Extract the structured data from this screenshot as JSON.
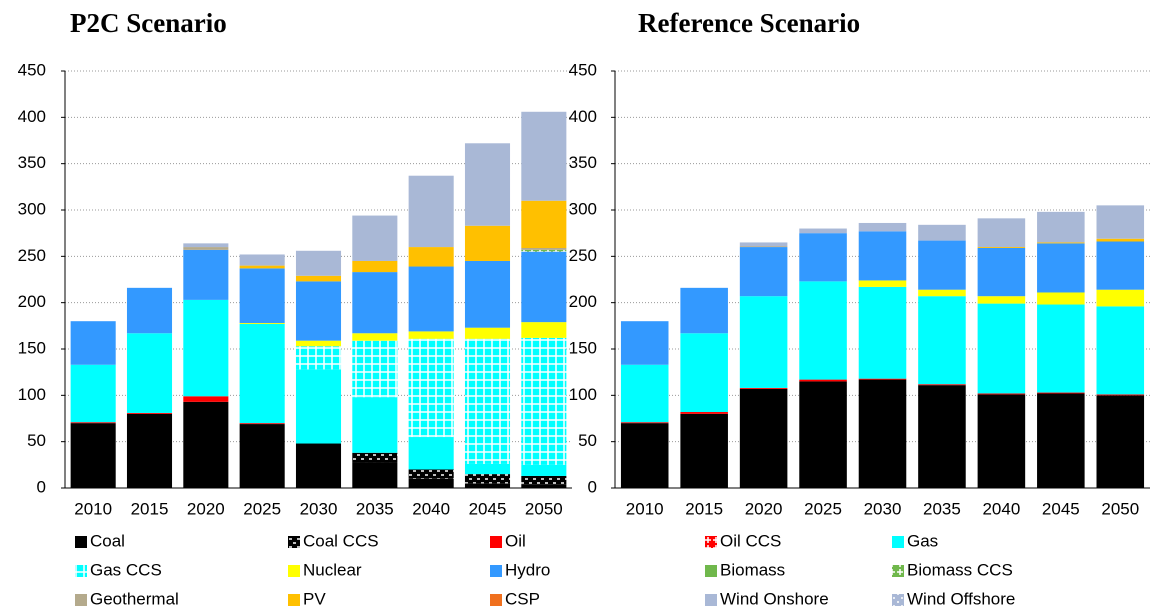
{
  "chart_data": [
    {
      "type": "stacked_bar",
      "title": "P2C Scenario",
      "categories": [
        "2010",
        "2015",
        "2020",
        "2025",
        "2030",
        "2035",
        "2040",
        "2045",
        "2050"
      ],
      "ylim": [
        0,
        450
      ],
      "yticks": [
        0,
        50,
        100,
        150,
        200,
        250,
        300,
        350,
        400,
        450
      ],
      "grid": true,
      "series": [
        {
          "name": "Coal",
          "color": "#000000",
          "values": [
            70,
            80,
            93,
            69,
            48,
            28,
            10,
            5,
            4
          ]
        },
        {
          "name": "Coal CCS",
          "color": "#000000",
          "pattern": "dash",
          "values": [
            0,
            0,
            0,
            0,
            0,
            10,
            10,
            10,
            9
          ]
        },
        {
          "name": "Oil",
          "color": "#ff0000",
          "values": [
            1,
            1,
            6,
            1,
            0,
            0,
            0,
            0,
            0
          ]
        },
        {
          "name": "Oil CCS",
          "color": "#ff0000",
          "pattern": "cross",
          "values": [
            0,
            0,
            0,
            0,
            0,
            0,
            0,
            0,
            0
          ]
        },
        {
          "name": "Gas",
          "color": "#00ffff",
          "values": [
            62,
            86,
            104,
            107,
            80,
            60,
            35,
            11,
            12
          ]
        },
        {
          "name": "Gas CCS",
          "color": "#00ffff",
          "pattern": "grid",
          "values": [
            0,
            0,
            0,
            0,
            25,
            61,
            106,
            135,
            137
          ]
        },
        {
          "name": "Nuclear",
          "color": "#ffff00",
          "values": [
            0,
            0,
            0,
            1,
            6,
            8,
            8,
            12,
            17
          ]
        },
        {
          "name": "Hydro",
          "color": "#3399ff",
          "values": [
            47,
            49,
            54,
            59,
            64,
            66,
            70,
            72,
            76
          ]
        },
        {
          "name": "Biomass",
          "color": "#70b84c",
          "values": [
            0,
            0,
            0,
            0,
            0,
            0,
            0,
            0,
            0
          ]
        },
        {
          "name": "Biomass CCS",
          "color": "#70b84c",
          "pattern": "cross",
          "values": [
            0,
            0,
            0,
            0,
            0,
            0,
            0,
            0,
            2
          ]
        },
        {
          "name": "Geothermal",
          "color": "#b4aa8c",
          "values": [
            0,
            0,
            3,
            0,
            0,
            0,
            0,
            0,
            2
          ]
        },
        {
          "name": "PV",
          "color": "#ffc000",
          "values": [
            0,
            0,
            0,
            3,
            6,
            12,
            21,
            38,
            51
          ]
        },
        {
          "name": "CSP",
          "color": "#f0701e",
          "values": [
            0,
            0,
            0,
            0,
            0,
            0,
            0,
            0,
            0
          ]
        },
        {
          "name": "Wind Onshore",
          "color": "#a9b8d6",
          "values": [
            0,
            0,
            4,
            12,
            27,
            49,
            77,
            89,
            96
          ]
        },
        {
          "name": "Wind Offshore",
          "color": "#a9b8d6",
          "pattern": "dots",
          "values": [
            0,
            0,
            0,
            0,
            0,
            0,
            0,
            0,
            0
          ]
        }
      ]
    },
    {
      "type": "stacked_bar",
      "title": "Reference Scenario",
      "categories": [
        "2010",
        "2015",
        "2020",
        "2025",
        "2030",
        "2035",
        "2040",
        "2045",
        "2050"
      ],
      "ylim": [
        0,
        450
      ],
      "yticks": [
        0,
        50,
        100,
        150,
        200,
        250,
        300,
        350,
        400,
        450
      ],
      "grid": true,
      "series": [
        {
          "name": "Coal",
          "color": "#000000",
          "values": [
            70,
            80,
            107,
            115,
            117,
            111,
            101,
            102,
            100
          ]
        },
        {
          "name": "Coal CCS",
          "color": "#000000",
          "pattern": "dash",
          "values": [
            0,
            0,
            0,
            0,
            0,
            0,
            0,
            0,
            0
          ]
        },
        {
          "name": "Oil",
          "color": "#ff0000",
          "values": [
            1,
            2,
            1,
            2,
            1,
            1,
            1,
            1,
            1
          ]
        },
        {
          "name": "Oil CCS",
          "color": "#ff0000",
          "pattern": "cross",
          "values": [
            0,
            0,
            0,
            0,
            0,
            0,
            0,
            0,
            0
          ]
        },
        {
          "name": "Gas",
          "color": "#00ffff",
          "values": [
            62,
            85,
            99,
            106,
            99,
            95,
            97,
            95,
            95
          ]
        },
        {
          "name": "Gas CCS",
          "color": "#00ffff",
          "pattern": "grid",
          "values": [
            0,
            0,
            0,
            0,
            0,
            0,
            0,
            0,
            0
          ]
        },
        {
          "name": "Nuclear",
          "color": "#ffff00",
          "values": [
            0,
            0,
            0,
            0,
            7,
            7,
            8,
            13,
            18
          ]
        },
        {
          "name": "Hydro",
          "color": "#3399ff",
          "values": [
            47,
            49,
            53,
            52,
            53,
            53,
            52,
            53,
            52
          ]
        },
        {
          "name": "Biomass",
          "color": "#70b84c",
          "values": [
            0,
            0,
            0,
            0,
            0,
            0,
            0,
            0,
            0
          ]
        },
        {
          "name": "Biomass CCS",
          "color": "#70b84c",
          "pattern": "cross",
          "values": [
            0,
            0,
            0,
            0,
            0,
            0,
            0,
            0,
            0
          ]
        },
        {
          "name": "Geothermal",
          "color": "#b4aa8c",
          "values": [
            0,
            0,
            1,
            0,
            0,
            0,
            0,
            0,
            0
          ]
        },
        {
          "name": "PV",
          "color": "#ffc000",
          "values": [
            0,
            0,
            0,
            0,
            0,
            0,
            1,
            1,
            3
          ]
        },
        {
          "name": "CSP",
          "color": "#f0701e",
          "values": [
            0,
            0,
            0,
            0,
            0,
            0,
            0,
            0,
            0
          ]
        },
        {
          "name": "Wind Onshore",
          "color": "#a9b8d6",
          "values": [
            0,
            0,
            4,
            5,
            9,
            17,
            31,
            33,
            36
          ]
        },
        {
          "name": "Wind Offshore",
          "color": "#a9b8d6",
          "pattern": "dots",
          "values": [
            0,
            0,
            0,
            0,
            0,
            0,
            0,
            0,
            0
          ]
        }
      ]
    }
  ]
}
